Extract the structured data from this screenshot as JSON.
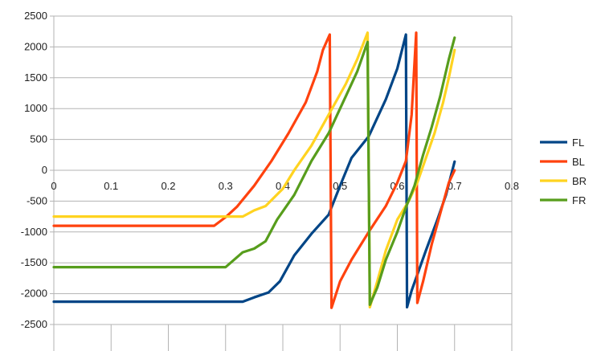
{
  "chart_data": {
    "type": "line",
    "title": "",
    "xlabel": "",
    "ylabel": "",
    "xlim": [
      0,
      0.8
    ],
    "ylim": [
      -2500,
      2500
    ],
    "x_ticks": [
      "0",
      "0.1",
      "0.2",
      "0.3",
      "0.4",
      "0.5",
      "0.6",
      "0.7",
      "0.8"
    ],
    "y_ticks": [
      "2500",
      "2000",
      "1500",
      "1000",
      "500",
      "0",
      "-500",
      "-1000",
      "-1500",
      "-2000",
      "-2500"
    ],
    "grid": true,
    "legend_position": "right",
    "series": [
      {
        "name": "FL",
        "color": "#004586",
        "points": [
          [
            0,
            -2130
          ],
          [
            0.1,
            -2130
          ],
          [
            0.2,
            -2130
          ],
          [
            0.33,
            -2130
          ],
          [
            0.35,
            -2060
          ],
          [
            0.375,
            -1980
          ],
          [
            0.395,
            -1800
          ],
          [
            0.42,
            -1380
          ],
          [
            0.45,
            -1030
          ],
          [
            0.48,
            -720
          ],
          [
            0.5,
            -250
          ],
          [
            0.52,
            200
          ],
          [
            0.55,
            550
          ],
          [
            0.58,
            1150
          ],
          [
            0.6,
            1650
          ],
          [
            0.615,
            2200
          ],
          [
            0.617,
            -2220
          ],
          [
            0.625,
            -1950
          ],
          [
            0.65,
            -1300
          ],
          [
            0.67,
            -800
          ],
          [
            0.685,
            -400
          ],
          [
            0.7,
            140
          ]
        ]
      },
      {
        "name": "BL",
        "color": "#ff420e",
        "points": [
          [
            0,
            -900
          ],
          [
            0.1,
            -900
          ],
          [
            0.2,
            -900
          ],
          [
            0.28,
            -900
          ],
          [
            0.3,
            -760
          ],
          [
            0.32,
            -590
          ],
          [
            0.35,
            -250
          ],
          [
            0.38,
            150
          ],
          [
            0.41,
            600
          ],
          [
            0.44,
            1100
          ],
          [
            0.46,
            1600
          ],
          [
            0.47,
            1950
          ],
          [
            0.482,
            2200
          ],
          [
            0.485,
            -2230
          ],
          [
            0.5,
            -1800
          ],
          [
            0.52,
            -1450
          ],
          [
            0.55,
            -1000
          ],
          [
            0.58,
            -580
          ],
          [
            0.6,
            -200
          ],
          [
            0.615,
            150
          ],
          [
            0.625,
            900
          ],
          [
            0.633,
            2230
          ],
          [
            0.635,
            -2150
          ],
          [
            0.645,
            -1800
          ],
          [
            0.66,
            -1200
          ],
          [
            0.675,
            -700
          ],
          [
            0.69,
            -200
          ],
          [
            0.7,
            0
          ]
        ]
      },
      {
        "name": "BR",
        "color": "#ffd320",
        "points": [
          [
            0,
            -750
          ],
          [
            0.1,
            -750
          ],
          [
            0.2,
            -750
          ],
          [
            0.33,
            -750
          ],
          [
            0.35,
            -650
          ],
          [
            0.37,
            -580
          ],
          [
            0.4,
            -300
          ],
          [
            0.42,
            0
          ],
          [
            0.45,
            400
          ],
          [
            0.48,
            900
          ],
          [
            0.51,
            1400
          ],
          [
            0.53,
            1800
          ],
          [
            0.548,
            2230
          ],
          [
            0.552,
            -2220
          ],
          [
            0.565,
            -1800
          ],
          [
            0.58,
            -1300
          ],
          [
            0.6,
            -800
          ],
          [
            0.62,
            -500
          ],
          [
            0.635,
            -200
          ],
          [
            0.65,
            200
          ],
          [
            0.665,
            600
          ],
          [
            0.68,
            1100
          ],
          [
            0.69,
            1500
          ],
          [
            0.7,
            1950
          ]
        ]
      },
      {
        "name": "FR",
        "color": "#579d1c",
        "points": [
          [
            0,
            -1570
          ],
          [
            0.1,
            -1570
          ],
          [
            0.2,
            -1570
          ],
          [
            0.3,
            -1570
          ],
          [
            0.33,
            -1330
          ],
          [
            0.35,
            -1270
          ],
          [
            0.37,
            -1150
          ],
          [
            0.39,
            -800
          ],
          [
            0.42,
            -400
          ],
          [
            0.45,
            150
          ],
          [
            0.48,
            600
          ],
          [
            0.51,
            1200
          ],
          [
            0.53,
            1600
          ],
          [
            0.548,
            2080
          ],
          [
            0.552,
            -2180
          ],
          [
            0.565,
            -1900
          ],
          [
            0.58,
            -1450
          ],
          [
            0.6,
            -1000
          ],
          [
            0.615,
            -600
          ],
          [
            0.63,
            -250
          ],
          [
            0.645,
            250
          ],
          [
            0.66,
            700
          ],
          [
            0.675,
            1200
          ],
          [
            0.69,
            1800
          ],
          [
            0.7,
            2150
          ]
        ]
      }
    ]
  }
}
